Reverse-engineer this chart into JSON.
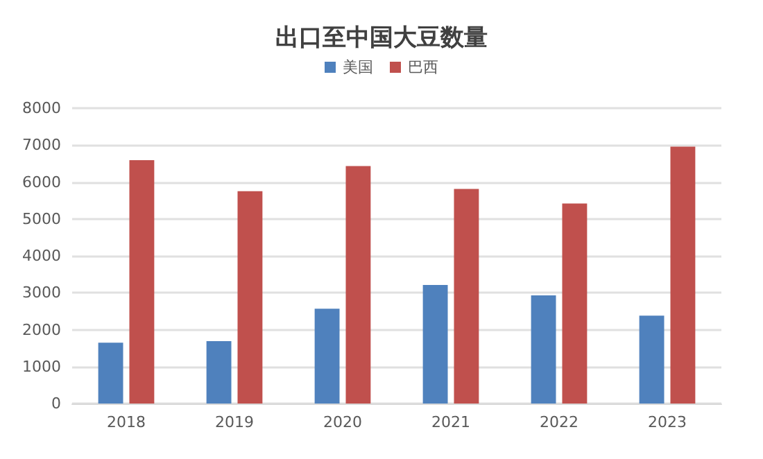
{
  "chart_data": {
    "type": "bar",
    "title": "出口至中国大豆数量",
    "categories": [
      "2018",
      "2019",
      "2020",
      "2021",
      "2022",
      "2023"
    ],
    "series": [
      {
        "name": "美国",
        "color": "#4f81bd",
        "values": [
          1650,
          1690,
          2570,
          3210,
          2930,
          2380
        ]
      },
      {
        "name": "巴西",
        "color": "#c0504d",
        "values": [
          6590,
          5750,
          6430,
          5810,
          5420,
          6960
        ]
      }
    ],
    "ylim": [
      0,
      8000
    ],
    "yticks": [
      0,
      1000,
      2000,
      3000,
      4000,
      5000,
      6000,
      7000,
      8000
    ],
    "grid": "y",
    "legend": "top"
  }
}
